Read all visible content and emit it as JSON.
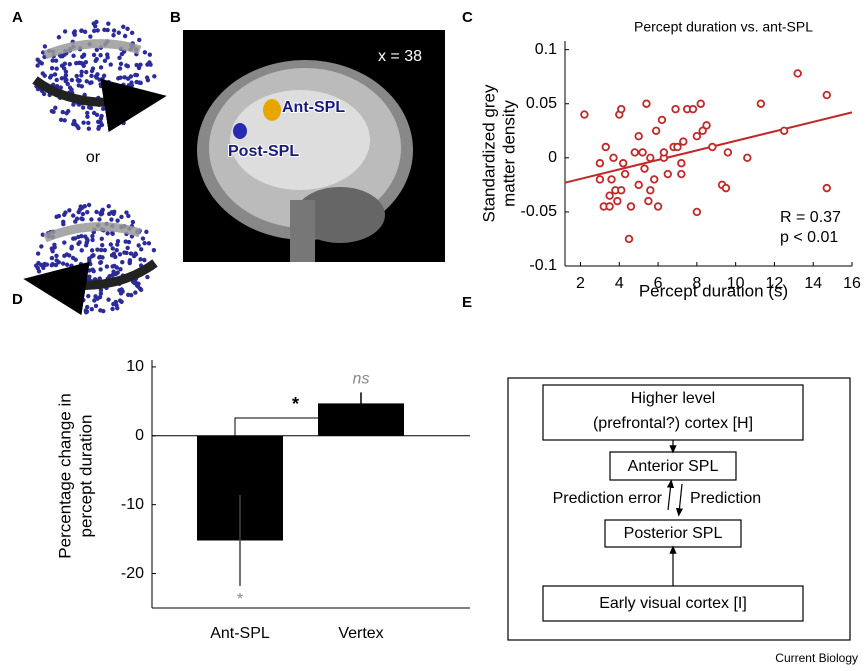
{
  "panel_labels": [
    "A",
    "B",
    "C",
    "D",
    "E"
  ],
  "panel_a": {
    "separator": "or"
  },
  "panel_b": {
    "coordinate": "x = 38",
    "regions": [
      "Ant-SPL",
      "Post-SPL"
    ]
  },
  "chart_data": [
    {
      "type": "scatter",
      "title": "Percept duration vs. ant-SPL",
      "xlabel": "Percept duration (s)",
      "ylabel": [
        "Standardized grey",
        "matter density"
      ],
      "x": [
        2.2,
        3.0,
        3.0,
        3.2,
        3.3,
        3.5,
        3.5,
        3.6,
        3.7,
        3.8,
        3.9,
        4.0,
        4.1,
        4.1,
        4.2,
        4.3,
        4.5,
        4.6,
        4.8,
        5.0,
        5.0,
        5.2,
        5.3,
        5.4,
        5.5,
        5.6,
        5.6,
        5.8,
        5.9,
        6.0,
        6.2,
        6.3,
        6.3,
        6.5,
        6.8,
        6.9,
        7.0,
        7.2,
        7.2,
        7.3,
        7.5,
        7.8,
        8.0,
        8.0,
        8.2,
        8.3,
        8.5,
        8.8,
        9.3,
        9.5,
        9.6,
        10.6,
        11.3,
        12.5,
        13.2,
        14.7,
        14.7
      ],
      "values": [
        0.04,
        -0.005,
        -0.02,
        -0.045,
        0.01,
        -0.035,
        -0.045,
        -0.02,
        0.0,
        -0.03,
        -0.04,
        0.04,
        -0.03,
        0.045,
        -0.005,
        -0.015,
        -0.075,
        -0.045,
        0.005,
        -0.025,
        0.02,
        0.005,
        -0.01,
        0.05,
        -0.04,
        0.0,
        -0.03,
        -0.02,
        0.025,
        -0.045,
        0.035,
        0.0,
        0.005,
        -0.015,
        0.01,
        0.045,
        0.01,
        -0.005,
        -0.015,
        0.015,
        0.045,
        0.045,
        0.02,
        -0.05,
        0.05,
        0.025,
        0.03,
        0.01,
        -0.025,
        -0.028,
        0.005,
        0.0,
        0.05,
        0.025,
        0.078,
        0.058,
        -0.028
      ],
      "color": "#c0282a",
      "fit_line": {
        "x": [
          1.2,
          16
        ],
        "y": [
          -0.023,
          0.042
        ]
      },
      "annotations": [
        "R = 0.37",
        "p < 0.01"
      ],
      "xlim": [
        1.2,
        16
      ],
      "xticks": [
        2,
        4,
        6,
        8,
        10,
        12,
        14,
        16
      ],
      "ylim": [
        -0.1,
        0.108
      ],
      "yticks": [
        0.1,
        0.05,
        0,
        -0.05,
        -0.1
      ]
    },
    {
      "type": "bar",
      "categories": [
        "Ant-SPL",
        "Vertex"
      ],
      "values": [
        -15.2,
        4.7
      ],
      "errors": [
        6.6,
        1.6
      ],
      "color": "#000000",
      "ylabel": [
        "Percentage change in",
        "percept duration"
      ],
      "value_annotations": [
        "*",
        "ns"
      ],
      "comparison": "*",
      "ylim": [
        -25,
        11
      ],
      "yticks": [
        10,
        0,
        -10,
        -20
      ]
    }
  ],
  "diagram": {
    "nodes": [
      {
        "label": [
          "Higher level",
          "(prefrontal?) cortex [H]"
        ]
      },
      {
        "label": [
          "Anterior SPL"
        ]
      },
      {
        "label": [
          "Posterior SPL"
        ]
      },
      {
        "label": [
          "Early visual cortex [I]"
        ]
      }
    ],
    "edge_labels": [
      "Prediction error",
      "Prediction"
    ]
  },
  "footer": "Current Biology"
}
